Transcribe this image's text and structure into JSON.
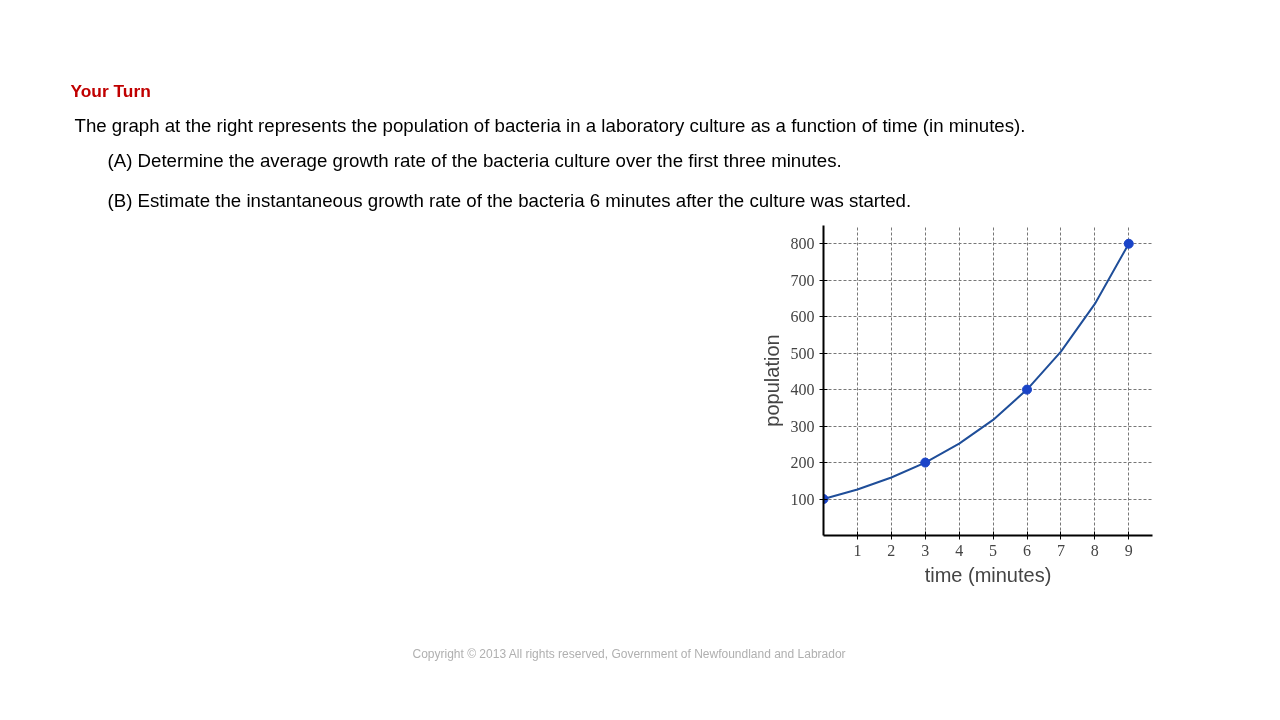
{
  "chart_data": {
    "type": "line",
    "title": "Your Turn",
    "subtitle": "The graph at the right represents the population of bacteria in a laboratory culture as a function of time (in minutes).",
    "annotations": [
      "(A) Determine the average growth rate of the bacteria culture over the first three minutes.",
      "(B) Estimate the instantaneous growth rate of the bacteria 6 minutes after the culture was started.",
      "Copyright © 2013  All rights reserved, Government of Newfoundland and Labrador"
    ],
    "xlabel": "time (minutes)",
    "ylabel": "population",
    "series": [
      {
        "color": "#1f4e99",
        "marker": "none",
        "x": [
          0,
          1,
          2,
          3,
          4,
          5,
          6,
          7,
          8,
          9
        ],
        "values": [
          100,
          126,
          159,
          200,
          252,
          317,
          400,
          504,
          635,
          800
        ]
      },
      {
        "type": "scatter",
        "color": "#1a44c8",
        "x": [
          0,
          3,
          6,
          9
        ],
        "values": [
          100,
          200,
          400,
          800
        ]
      }
    ],
    "xlim": [
      0,
      9.7
    ],
    "ylim": [
      0,
      850
    ],
    "xticks": [
      1,
      2,
      3,
      4,
      5,
      6,
      7,
      8,
      9
    ],
    "yticks": [
      100,
      200,
      300,
      400,
      500,
      600,
      700,
      800
    ],
    "grid": true,
    "marker": "circle",
    "line_style": "solid"
  }
}
